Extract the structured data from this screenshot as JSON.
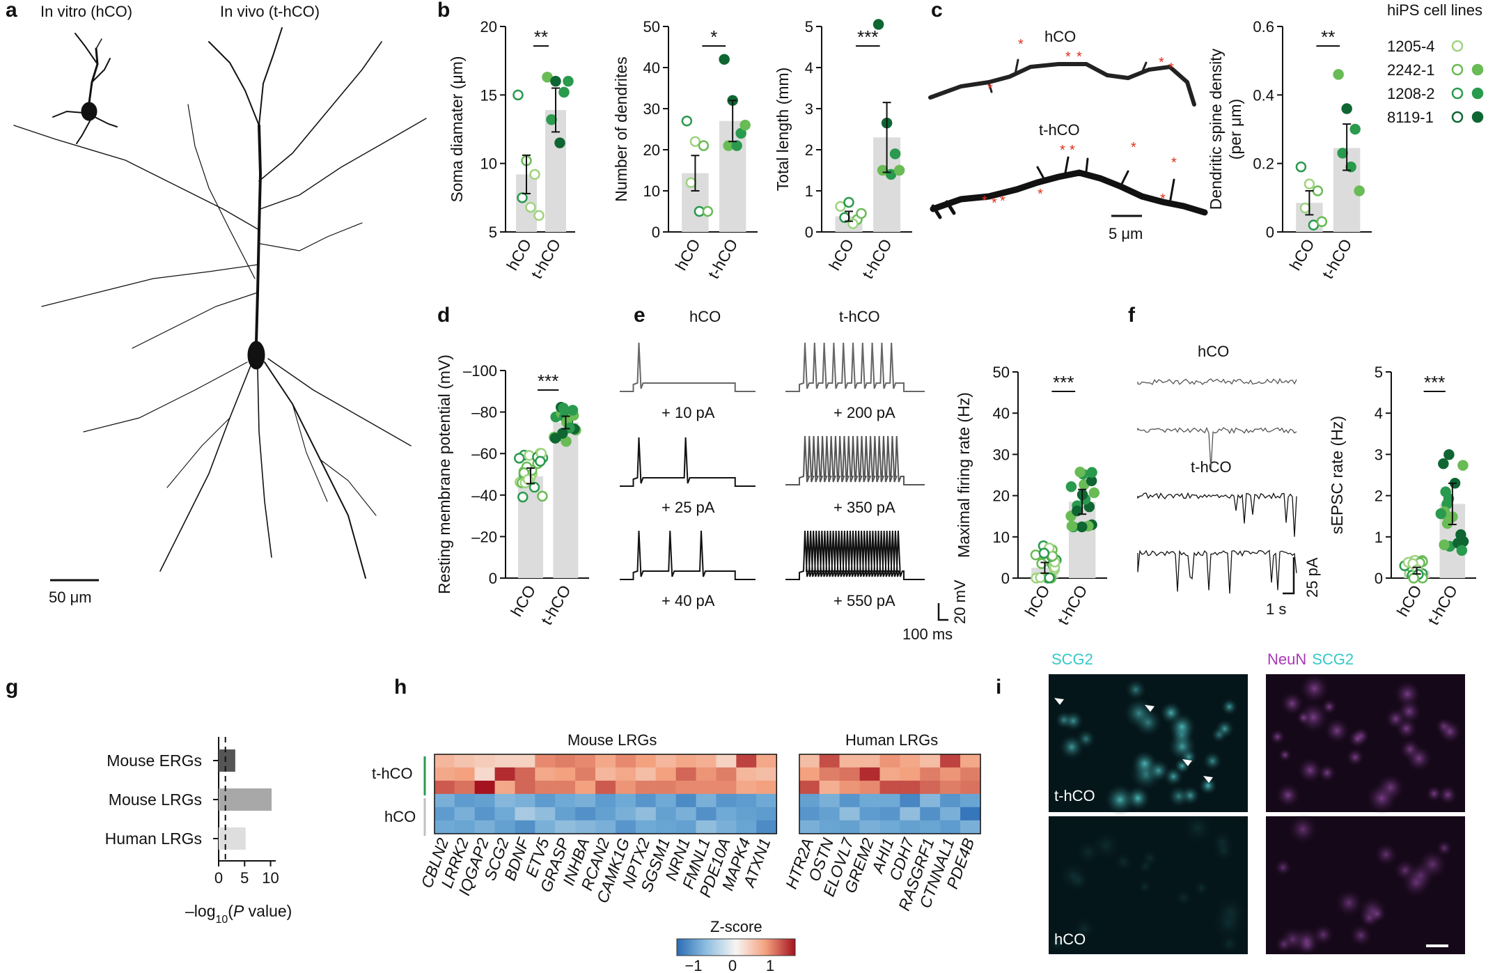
{
  "panels": {
    "a": {
      "label": "a",
      "left_title": "In vitro (hCO)",
      "right_title": "In vivo (t-hCO)",
      "scale": "50 μm"
    },
    "b": {
      "label": "b"
    },
    "c": {
      "label": "c",
      "top_title": "hCO",
      "bottom_title": "t-hCO",
      "scale": "5 μm"
    },
    "d": {
      "label": "d"
    },
    "e": {
      "label": "e",
      "left_title": "hCO",
      "right_title": "t-hCO",
      "left_steps": [
        "+ 10 pA",
        "+ 25 pA",
        "+ 40 pA"
      ],
      "right_steps": [
        "+ 200 pA",
        "+ 350 pA",
        "+ 550 pA"
      ],
      "scale_v": "20 mV",
      "scale_t": "100 ms"
    },
    "f": {
      "label": "f",
      "top_title": "hCO",
      "bottom_title": "t-hCO",
      "scale_i": "25 pA",
      "scale_t": "1 s"
    },
    "g": {
      "label": "g",
      "xlabel_pre": "–log",
      "xlabel_sub": "10",
      "xlabel_paren": "(",
      "xlabel_p": "P",
      "xlabel_post": " value)"
    },
    "h": {
      "label": "h",
      "group1": "Mouse LRGs",
      "group2": "Human LRGs",
      "row1": "t-hCO",
      "row2": "hCO",
      "zlabel": "Z-score",
      "zticks": [
        "−1",
        "0",
        "1"
      ]
    },
    "i": {
      "label": "i",
      "left_title": "SCG2",
      "right_title_a": "NeuN",
      "right_title_b": "SCG2",
      "inset1": "t-hCO",
      "inset2": "hCO"
    }
  },
  "legend": {
    "title": "hiPS cell lines",
    "items": [
      {
        "name": "1205-4",
        "color": "#9ed37f",
        "filled": false
      },
      {
        "name": "2242-1",
        "color": "#69bb55",
        "filled": true
      },
      {
        "name": "1208-2",
        "color": "#2a9a4e",
        "filled": true
      },
      {
        "name": "8119-1",
        "color": "#0f6632",
        "filled": true
      }
    ]
  },
  "chart_data": [
    {
      "id": "soma",
      "type": "bar",
      "categories": [
        "hCO",
        "t-hCO"
      ],
      "ylabel": "Soma diamater (μm)",
      "ylim": [
        5,
        20
      ],
      "yticks": [
        5,
        10,
        15,
        20
      ],
      "bar_values": [
        9.2,
        13.9
      ],
      "err": [
        [
          7.8,
          10.6
        ],
        [
          12.3,
          15.5
        ]
      ],
      "significance": "**",
      "points": [
        [
          [
            0,
            15.0,
            "#2a9a4e",
            0
          ],
          [
            0,
            10.2,
            "#69bb55",
            0
          ],
          [
            0,
            9.2,
            "#9ed37f",
            0
          ],
          [
            0,
            7.5,
            "#2a9a4e",
            0
          ],
          [
            0,
            6.8,
            "#9ed37f",
            0
          ],
          [
            0,
            6.2,
            "#9ed37f",
            0
          ]
        ],
        [
          [
            1,
            16.3,
            "#69bb55",
            1
          ],
          [
            1,
            16.0,
            "#0f6632",
            1
          ],
          [
            1,
            15.2,
            "#2a9a4e",
            1
          ],
          [
            1,
            13.2,
            "#2a9a4e",
            1
          ],
          [
            1,
            11.5,
            "#0f6632",
            1
          ],
          [
            1,
            16.0,
            "#2a9a4e",
            1
          ]
        ]
      ]
    },
    {
      "id": "dendrites",
      "type": "bar",
      "categories": [
        "hCO",
        "t-hCO"
      ],
      "ylabel": "Number of dendrites",
      "ylim": [
        0,
        50
      ],
      "yticks": [
        0,
        10,
        20,
        30,
        40,
        50
      ],
      "bar_values": [
        14.3,
        27.0
      ],
      "err": [
        [
          10.0,
          18.6
        ],
        [
          22.0,
          32.0
        ]
      ],
      "significance": "*",
      "points": [
        [
          [
            0,
            27,
            "#2a9a4e",
            0
          ],
          [
            0,
            22,
            "#9ed37f",
            0
          ],
          [
            0,
            21,
            "#69bb55",
            0
          ],
          [
            0,
            12,
            "#9ed37f",
            0
          ],
          [
            0,
            5,
            "#2a9a4e",
            0
          ],
          [
            0,
            5,
            "#69bb55",
            0
          ]
        ],
        [
          [
            1,
            42,
            "#0f6632",
            1
          ],
          [
            1,
            32,
            "#0f6632",
            1
          ],
          [
            1,
            24,
            "#2a9a4e",
            1
          ],
          [
            1,
            21,
            "#69bb55",
            1
          ],
          [
            1,
            21,
            "#2a9a4e",
            1
          ],
          [
            1,
            26,
            "#69bb55",
            1
          ]
        ]
      ]
    },
    {
      "id": "length",
      "type": "bar",
      "categories": [
        "hCO",
        "t-hCO"
      ],
      "ylabel": "Total length (mm)",
      "ylim": [
        0,
        5
      ],
      "yticks": [
        0,
        1,
        2,
        3,
        4,
        5
      ],
      "bar_values": [
        0.38,
        2.3
      ],
      "err": [
        [
          0.26,
          0.5
        ],
        [
          1.45,
          3.15
        ]
      ],
      "significance": "***",
      "points": [
        [
          [
            0,
            0.62,
            "#9ed37f",
            0
          ],
          [
            0,
            0.72,
            "#2a9a4e",
            0
          ],
          [
            0,
            0.3,
            "#69bb55",
            0
          ],
          [
            0,
            0.35,
            "#2a9a4e",
            0
          ],
          [
            0,
            0.2,
            "#9ed37f",
            0
          ],
          [
            0,
            0.45,
            "#69bb55",
            0
          ]
        ],
        [
          [
            1,
            5.05,
            "#0f6632",
            1
          ],
          [
            1,
            2.65,
            "#0f6632",
            1
          ],
          [
            1,
            1.9,
            "#2a9a4e",
            1
          ],
          [
            1,
            1.5,
            "#69bb55",
            1
          ],
          [
            1,
            1.4,
            "#2a9a4e",
            1
          ],
          [
            1,
            1.5,
            "#69bb55",
            1
          ]
        ]
      ]
    },
    {
      "id": "spine",
      "type": "bar",
      "categories": [
        "hCO",
        "t-hCO"
      ],
      "ylabel": "Dendritic spine density",
      "ylabel2": "(per μm)",
      "ylim": [
        0,
        0.6
      ],
      "yticks": [
        0,
        0.2,
        0.4,
        0.6
      ],
      "bar_values": [
        0.085,
        0.245
      ],
      "err": [
        [
          0.05,
          0.12
        ],
        [
          0.18,
          0.315
        ]
      ],
      "significance": "**",
      "points": [
        [
          [
            0,
            0.19,
            "#2a9a4e",
            0
          ],
          [
            0,
            0.14,
            "#9ed37f",
            0
          ],
          [
            0,
            0.12,
            "#69bb55",
            0
          ],
          [
            0,
            0.07,
            "#9ed37f",
            0
          ],
          [
            0,
            0.02,
            "#2a9a4e",
            0
          ],
          [
            0,
            0.03,
            "#69bb55",
            0
          ]
        ],
        [
          [
            1,
            0.46,
            "#69bb55",
            1
          ],
          [
            1,
            0.36,
            "#0f6632",
            1
          ],
          [
            1,
            0.3,
            "#2a9a4e",
            1
          ],
          [
            1,
            0.23,
            "#2a9a4e",
            1
          ],
          [
            1,
            0.19,
            "#2a9a4e",
            1
          ],
          [
            1,
            0.12,
            "#69bb55",
            1
          ]
        ]
      ]
    },
    {
      "id": "rmp",
      "type": "bar",
      "categories": [
        "hCO",
        "t-hCO"
      ],
      "ylabel": "Resting membrane potential (mV)",
      "ylim": [
        0,
        -100
      ],
      "yticks": [
        0,
        -20,
        -40,
        -60,
        -80,
        -100
      ],
      "ytick_labels": [
        "0",
        "–20",
        "–40",
        "–60",
        "–80",
        "–100"
      ],
      "bar_values": [
        -49,
        -75
      ],
      "err": [
        [
          -45.5,
          -53
        ],
        [
          -72,
          -78
        ]
      ],
      "significance": "***"
    },
    {
      "id": "firing",
      "type": "bar",
      "categories": [
        "hCO",
        "t-hCO"
      ],
      "ylabel": "Maximal firing rate (Hz)",
      "ylim": [
        0,
        50
      ],
      "yticks": [
        0,
        10,
        20,
        30,
        40,
        50
      ],
      "bar_values": [
        2.5,
        18.5
      ],
      "err": [
        [
          1.2,
          3.8
        ],
        [
          15.5,
          21.5
        ]
      ],
      "significance": "***"
    },
    {
      "id": "sepsc",
      "type": "bar",
      "categories": [
        "hCO",
        "t-hCO"
      ],
      "ylabel": "sEPSC rate (Hz)",
      "ylim": [
        0,
        5
      ],
      "yticks": [
        0,
        1,
        2,
        3,
        4,
        5
      ],
      "bar_values": [
        0.18,
        1.8
      ],
      "err": [
        [
          0.1,
          0.26
        ],
        [
          1.3,
          2.3
        ]
      ],
      "significance": "***"
    },
    {
      "id": "enrichment",
      "type": "bar",
      "orientation": "horizontal",
      "categories": [
        "Mouse ERGs",
        "Mouse LRGs",
        "Human LRGs"
      ],
      "values": [
        3.2,
        10.2,
        5.2
      ],
      "xlim": [
        0,
        11
      ],
      "xticks": [
        0,
        5,
        10
      ],
      "threshold": 1.3
    },
    {
      "id": "heatmap",
      "type": "heatmap",
      "mouse_genes": [
        "CBLN2",
        "LRRK2",
        "IQGAP2",
        "SCG2",
        "BDNF",
        "ETV5",
        "GRASP",
        "INHBA",
        "RCAN2",
        "CAMK1G",
        "NPTX2",
        "SGSM1",
        "NRN1",
        "FMNL1",
        "PDE10A",
        "MAPK4",
        "ATXN1"
      ],
      "human_genes": [
        "HTR2A",
        "OSTN",
        "ELOVL7",
        "GREM2",
        "AHI1",
        "CDH7",
        "RASGRF1",
        "CTNNAL1",
        "PDE4B"
      ],
      "rows": [
        [
          0.45,
          0.35,
          0.3,
          0.25,
          0.25,
          0.7,
          0.75,
          0.7,
          0.55,
          0.7,
          0.6,
          0.45,
          0.55,
          0.5,
          0.25,
          1.0,
          0.55,
          0.4,
          0.95,
          0.45,
          0.45,
          0.65,
          0.55,
          0.4,
          1.0,
          0.55
        ],
        [
          0.55,
          0.6,
          0.2,
          1.1,
          0.85,
          0.55,
          0.6,
          0.75,
          0.45,
          0.55,
          0.4,
          0.6,
          0.85,
          0.65,
          0.75,
          0.45,
          0.4,
          0.6,
          0.75,
          0.8,
          1.1,
          0.55,
          0.6,
          0.75,
          0.65,
          0.75
        ],
        [
          0.9,
          0.8,
          1.2,
          0.55,
          0.85,
          0.75,
          0.75,
          0.6,
          0.9,
          0.65,
          0.75,
          0.75,
          0.7,
          0.7,
          0.7,
          0.55,
          0.6,
          0.95,
          0.5,
          0.65,
          0.7,
          0.95,
          0.95,
          0.85,
          0.75,
          0.8
        ],
        [
          -0.55,
          -0.75,
          -0.7,
          -0.5,
          -0.55,
          -0.75,
          -0.6,
          -0.55,
          -0.75,
          -0.6,
          -0.8,
          -0.6,
          -0.9,
          -0.55,
          -0.8,
          -0.75,
          -0.6,
          -0.7,
          -0.55,
          -0.8,
          -0.6,
          -0.6,
          -0.95,
          -0.5,
          -0.8,
          -0.65
        ],
        [
          -0.75,
          -0.55,
          -0.8,
          -0.6,
          -0.35,
          -0.45,
          -0.7,
          -0.85,
          -0.7,
          -0.55,
          -0.45,
          -0.7,
          -0.55,
          -0.85,
          -0.6,
          -0.7,
          -0.75,
          -0.8,
          -0.7,
          -0.45,
          -0.75,
          -0.8,
          -0.45,
          -0.85,
          -0.55,
          -1.1
        ],
        [
          -0.6,
          -0.65,
          -0.55,
          -0.7,
          -0.85,
          -0.55,
          -0.45,
          -0.5,
          -0.55,
          -0.8,
          -0.6,
          -0.65,
          -0.7,
          -0.45,
          -0.55,
          -0.65,
          -0.9,
          -0.55,
          -0.65,
          -0.7,
          -0.55,
          -0.6,
          -0.7,
          -0.65,
          -0.75,
          -0.55
        ]
      ]
    }
  ],
  "colors": {
    "bar": "#dcdcdc",
    "light": "#9ed37f",
    "mid": "#69bb55",
    "dark": "#2a9a4e",
    "darkest": "#0f6632",
    "cyan": "#35c8c8",
    "magenta": "#a838b8",
    "spine_mark": "#e0301c"
  }
}
